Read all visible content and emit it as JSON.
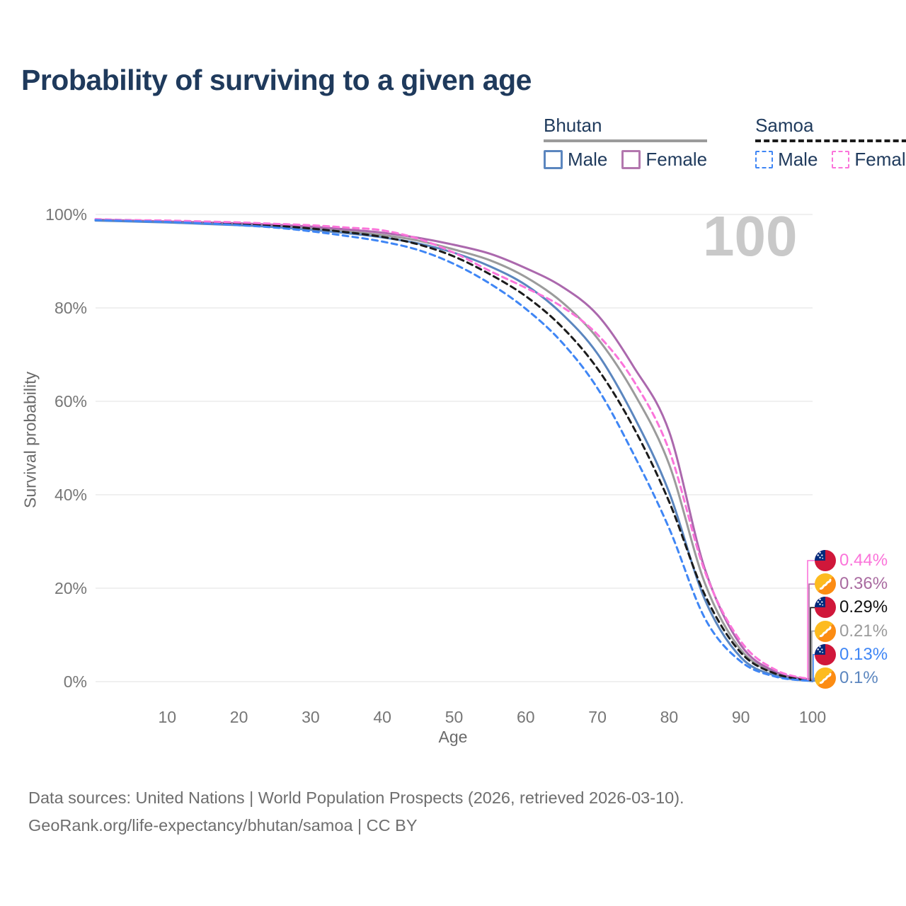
{
  "title": "Probability of surviving to a given age",
  "watermark": "100",
  "legend": {
    "groups": [
      {
        "country": "Bhutan",
        "style": "solid",
        "line_color": "#9b9b9b",
        "items": [
          {
            "label": "Male",
            "color": "#5b86bf"
          },
          {
            "label": "Female",
            "color": "#b377ae"
          }
        ]
      },
      {
        "country": "Samoa",
        "style": "dashed",
        "line_color": "#1b1b1b",
        "items": [
          {
            "label": "Male",
            "color": "#3f86f5"
          },
          {
            "label": "Female",
            "color": "#fb74da"
          }
        ]
      }
    ]
  },
  "chart_data": {
    "type": "line",
    "title": "Probability of surviving to a given age",
    "xlabel": "Age",
    "ylabel": "Survival probability",
    "xlim": [
      0,
      100
    ],
    "ylim": [
      0,
      100
    ],
    "grid": "horizontal",
    "grid_color": "#e7e7e7",
    "x_ticks": [
      10,
      20,
      30,
      40,
      50,
      60,
      70,
      80,
      90,
      100
    ],
    "y_ticks": [
      {
        "label": "100%",
        "value": 100
      },
      {
        "label": "80%",
        "value": 80
      },
      {
        "label": "60%",
        "value": 60
      },
      {
        "label": "40%",
        "value": 40
      },
      {
        "label": "20%",
        "value": 20
      },
      {
        "label": "0%",
        "value": 0
      }
    ],
    "ages": [
      0,
      5,
      10,
      15,
      20,
      25,
      30,
      35,
      40,
      45,
      50,
      55,
      60,
      65,
      70,
      75,
      80,
      85,
      90,
      95,
      100
    ],
    "series": [
      {
        "name": "Bhutan",
        "country": "Bhutan",
        "sex": "Both",
        "color": "#9b9b9b",
        "dashed": false,
        "values": [
          98.8,
          98.6,
          98.4,
          98.2,
          97.9,
          97.5,
          97.0,
          96.4,
          95.6,
          94.4,
          92.5,
          90.2,
          86.6,
          81.3,
          73.5,
          62.0,
          46.5,
          21.0,
          6.8,
          1.7,
          0.21
        ]
      },
      {
        "name": "Bhutan Female",
        "country": "Bhutan",
        "sex": "Female",
        "color": "#ab68ad",
        "dashed": false,
        "values": [
          98.9,
          98.7,
          98.5,
          98.3,
          98.1,
          97.8,
          97.4,
          96.8,
          96.1,
          95.0,
          93.5,
          91.6,
          88.5,
          84.6,
          78.5,
          67.5,
          53.5,
          24.0,
          7.8,
          2.0,
          0.36
        ]
      },
      {
        "name": "Bhutan Male",
        "country": "Bhutan",
        "sex": "Male",
        "color": "#5b86bf",
        "dashed": false,
        "values": [
          98.7,
          98.5,
          98.3,
          98.0,
          97.7,
          97.3,
          96.7,
          96.0,
          95.1,
          93.8,
          91.8,
          88.9,
          84.9,
          78.8,
          70.2,
          57.0,
          40.5,
          17.5,
          5.2,
          1.2,
          0.1
        ]
      },
      {
        "name": "Samoa",
        "country": "Samoa",
        "sex": "Both",
        "color": "#1b1b1b",
        "dashed": true,
        "values": [
          98.9,
          98.7,
          98.5,
          98.3,
          98.0,
          97.6,
          97.0,
          96.2,
          95.2,
          93.6,
          91.0,
          87.2,
          82.5,
          76.0,
          67.0,
          54.5,
          38.5,
          18.5,
          6.2,
          1.6,
          0.29
        ]
      },
      {
        "name": "Samoa Female",
        "country": "Samoa",
        "sex": "Female",
        "color": "#fb74da",
        "dashed": true,
        "values": [
          99.0,
          98.8,
          98.7,
          98.5,
          98.3,
          98.0,
          97.7,
          97.2,
          96.6,
          94.8,
          91.8,
          87.9,
          84.3,
          80.3,
          74.3,
          64.5,
          49.5,
          23.5,
          8.6,
          2.4,
          0.44
        ]
      },
      {
        "name": "Samoa Male",
        "country": "Samoa",
        "sex": "Male",
        "color": "#3f86f5",
        "dashed": true,
        "values": [
          98.8,
          98.6,
          98.4,
          98.1,
          97.7,
          97.2,
          96.4,
          95.4,
          94.2,
          92.4,
          89.4,
          85.2,
          79.8,
          72.7,
          62.8,
          48.8,
          32.8,
          13.5,
          4.3,
          1.0,
          0.13
        ]
      }
    ],
    "end_labels": [
      {
        "value": "0.44%",
        "color": "#fb74da",
        "flag": "samoa",
        "series": "Samoa Female"
      },
      {
        "value": "0.36%",
        "color": "#a96ba0",
        "flag": "bhutan",
        "series": "Bhutan Female"
      },
      {
        "value": "0.29%",
        "color": "#111111",
        "flag": "samoa",
        "series": "Samoa"
      },
      {
        "value": "0.21%",
        "color": "#9b9b9b",
        "flag": "bhutan",
        "series": "Bhutan"
      },
      {
        "value": "0.13%",
        "color": "#3f86f5",
        "flag": "samoa",
        "series": "Samoa Male"
      },
      {
        "value": "0.1%",
        "color": "#5b86bf",
        "flag": "bhutan",
        "series": "Bhutan Male"
      }
    ]
  },
  "footer": {
    "line1": "Data sources: United Nations | World Population Prospects (2026, retrieved 2026-03-10).",
    "line2": "GeoRank.org/life-expectancy/bhutan/samoa | CC BY"
  }
}
